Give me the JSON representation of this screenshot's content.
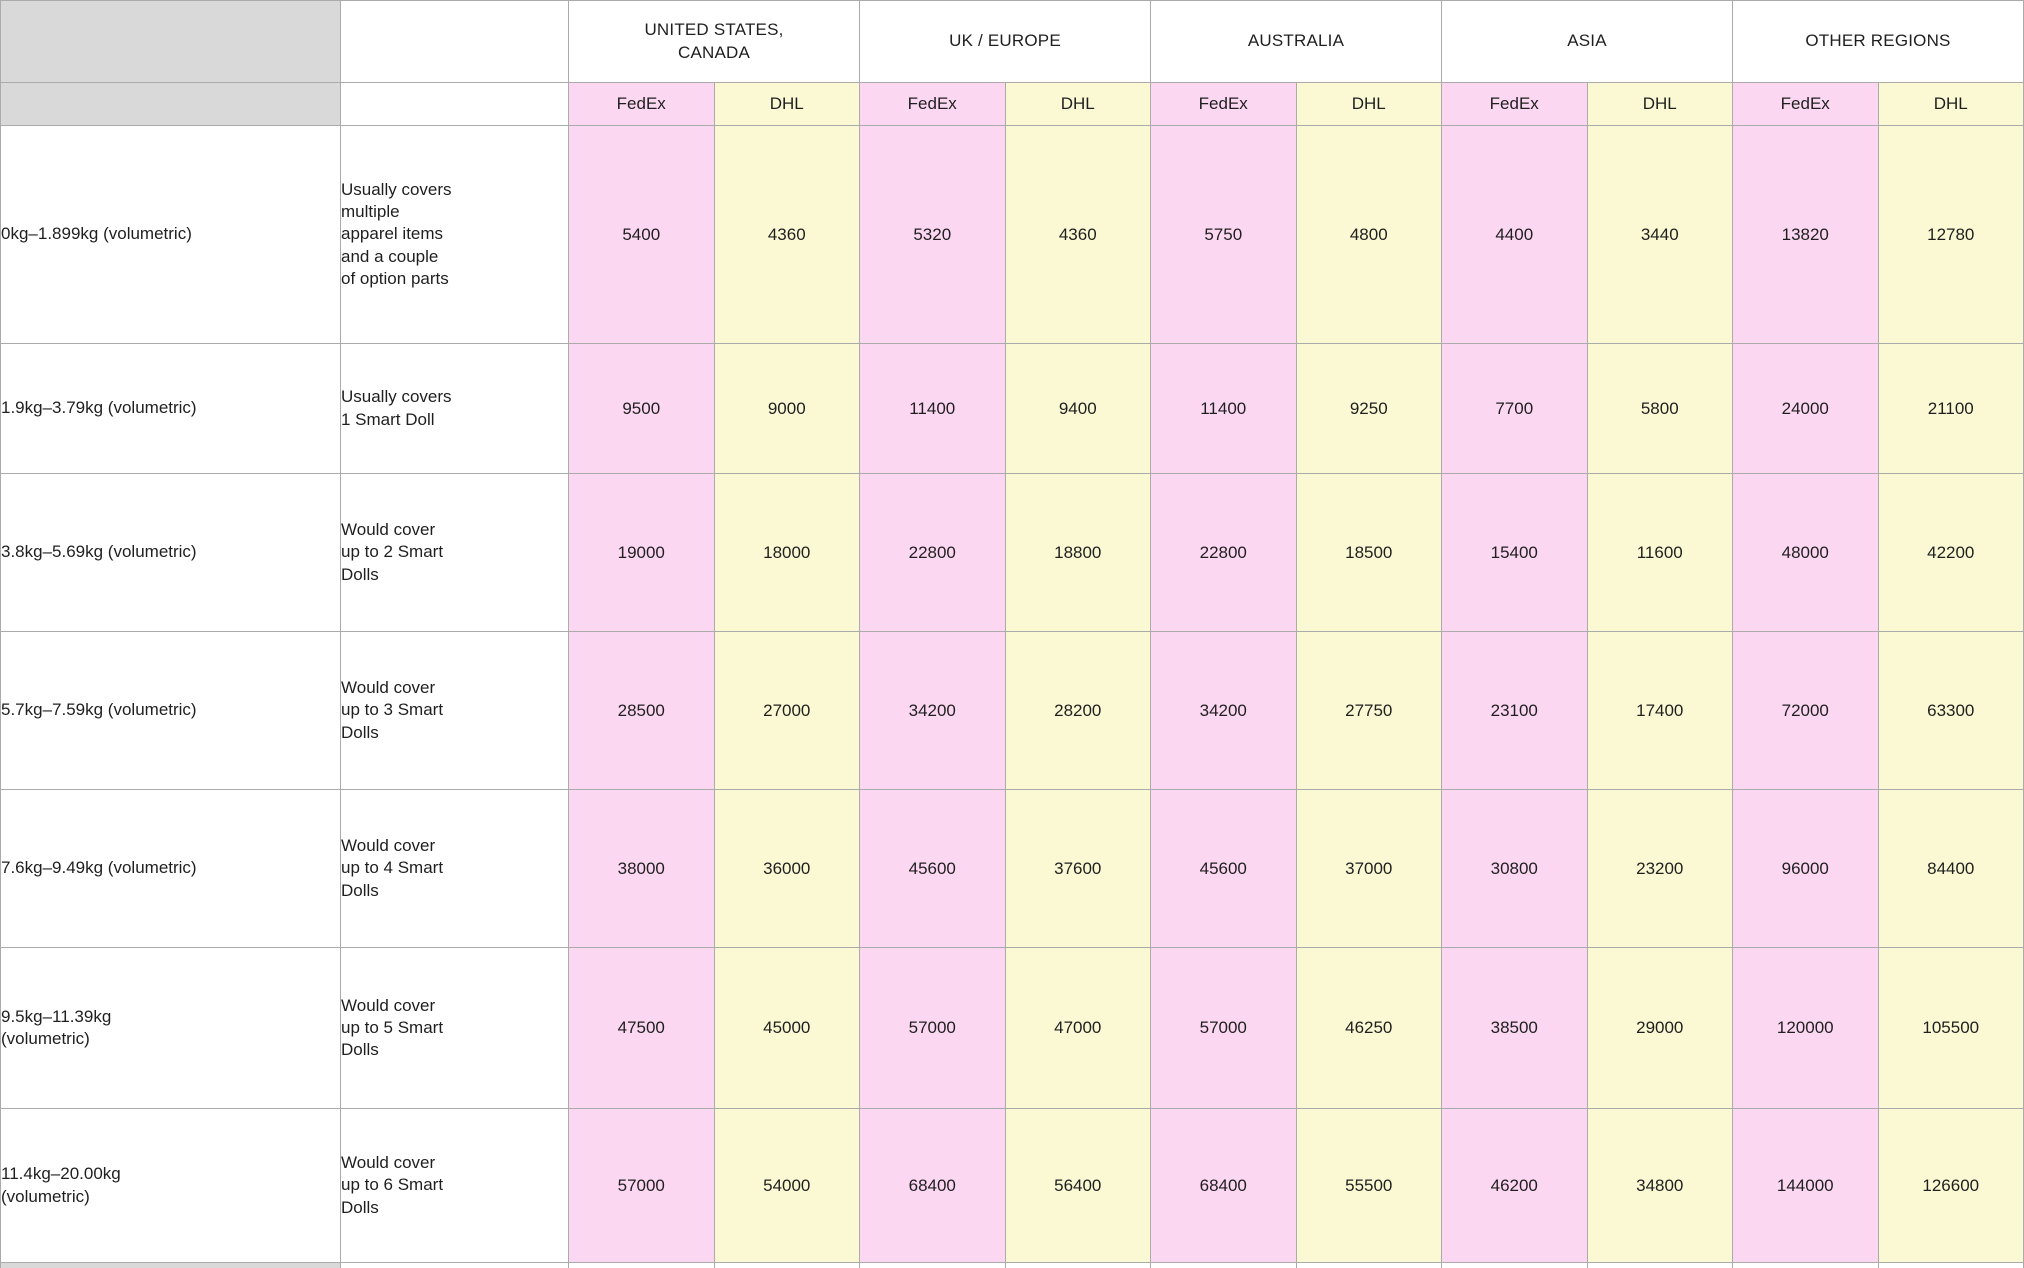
{
  "table": {
    "region_groups": [
      {
        "label": "UNITED STATES,\nCANADA"
      },
      {
        "label": "UK / EUROPE"
      },
      {
        "label": "AUSTRALIA"
      },
      {
        "label": "ASIA"
      },
      {
        "label": "OTHER REGIONS"
      }
    ],
    "carrier_labels": [
      "FedEx",
      "DHL"
    ],
    "colors": {
      "fedex_pink": "#fcd7f2",
      "dhl_yellow": "#fbf9d3",
      "header_gray": "#d9d9d9",
      "border_gray": "#ababab"
    },
    "rows": [
      {
        "weight": "0kg–1.899kg (volumetric)",
        "description": "Usually covers\nmultiple\napparel items\nand a couple\nof option parts",
        "values": [
          5400,
          4360,
          5320,
          4360,
          5750,
          4800,
          4400,
          3440,
          13820,
          12780
        ]
      },
      {
        "weight": "1.9kg–3.79kg (volumetric)",
        "description": "Usually covers\n1 Smart Doll",
        "values": [
          9500,
          9000,
          11400,
          9400,
          11400,
          9250,
          7700,
          5800,
          24000,
          21100
        ]
      },
      {
        "weight": "3.8kg–5.69kg (volumetric)",
        "description": "Would cover\nup to 2 Smart\nDolls",
        "values": [
          19000,
          18000,
          22800,
          18800,
          22800,
          18500,
          15400,
          11600,
          48000,
          42200
        ]
      },
      {
        "weight": "5.7kg–7.59kg (volumetric)",
        "description": "Would cover\nup to 3 Smart\nDolls",
        "values": [
          28500,
          27000,
          34200,
          28200,
          34200,
          27750,
          23100,
          17400,
          72000,
          63300
        ]
      },
      {
        "weight": "7.6kg–9.49kg (volumetric)",
        "description": "Would cover\nup to 4 Smart\nDolls",
        "values": [
          38000,
          36000,
          45600,
          37600,
          45600,
          37000,
          30800,
          23200,
          96000,
          84400
        ]
      },
      {
        "weight": "9.5kg–11.39kg\n(volumetric)",
        "description": "Would cover\nup to 5 Smart\nDolls",
        "values": [
          47500,
          45000,
          57000,
          47000,
          57000,
          46250,
          38500,
          29000,
          120000,
          105500
        ]
      },
      {
        "weight": "11.4kg–20.00kg\n(volumetric)",
        "description": "Would cover\nup to 6 Smart\nDolls",
        "values": [
          57000,
          54000,
          68400,
          56400,
          68400,
          55500,
          46200,
          34800,
          144000,
          126600
        ]
      }
    ]
  }
}
